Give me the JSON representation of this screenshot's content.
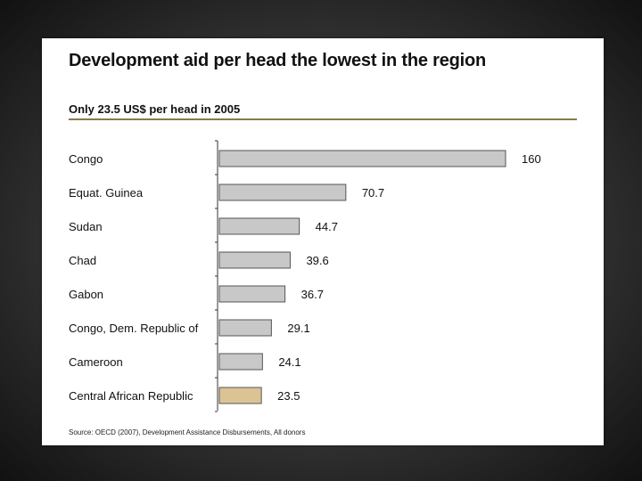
{
  "slide": {
    "title": "Development aid per head the lowest in the region",
    "subtitle": "Only 23.5 US$ per head in 2005",
    "source": "Source: OECD (2007), Development Assistance Disbursements, All donors"
  },
  "colors": {
    "bar_default": "#c8c8c8",
    "bar_highlight": "#dcc394",
    "bar_stroke": "#555555",
    "rule": "#8a7a4a"
  },
  "chart_data": {
    "type": "bar",
    "orientation": "horizontal",
    "title": "Development aid per head the lowest in the region",
    "subtitle": "Only 23.5 US$ per head in 2005",
    "xlabel": "",
    "ylabel": "",
    "xlim": [
      0,
      160
    ],
    "grid": false,
    "categories": [
      "Congo",
      "Equat. Guinea",
      "Sudan",
      "Chad",
      "Gabon",
      "Congo, Dem. Republic of",
      "Cameroon",
      "Central African Republic"
    ],
    "values": [
      160,
      70.7,
      44.7,
      39.6,
      36.7,
      29.1,
      24.1,
      23.5
    ],
    "value_labels": [
      "160",
      "70.7",
      "44.7",
      "39.6",
      "36.7",
      "29.1",
      "24.1",
      "23.5"
    ],
    "highlight_index": 7
  }
}
